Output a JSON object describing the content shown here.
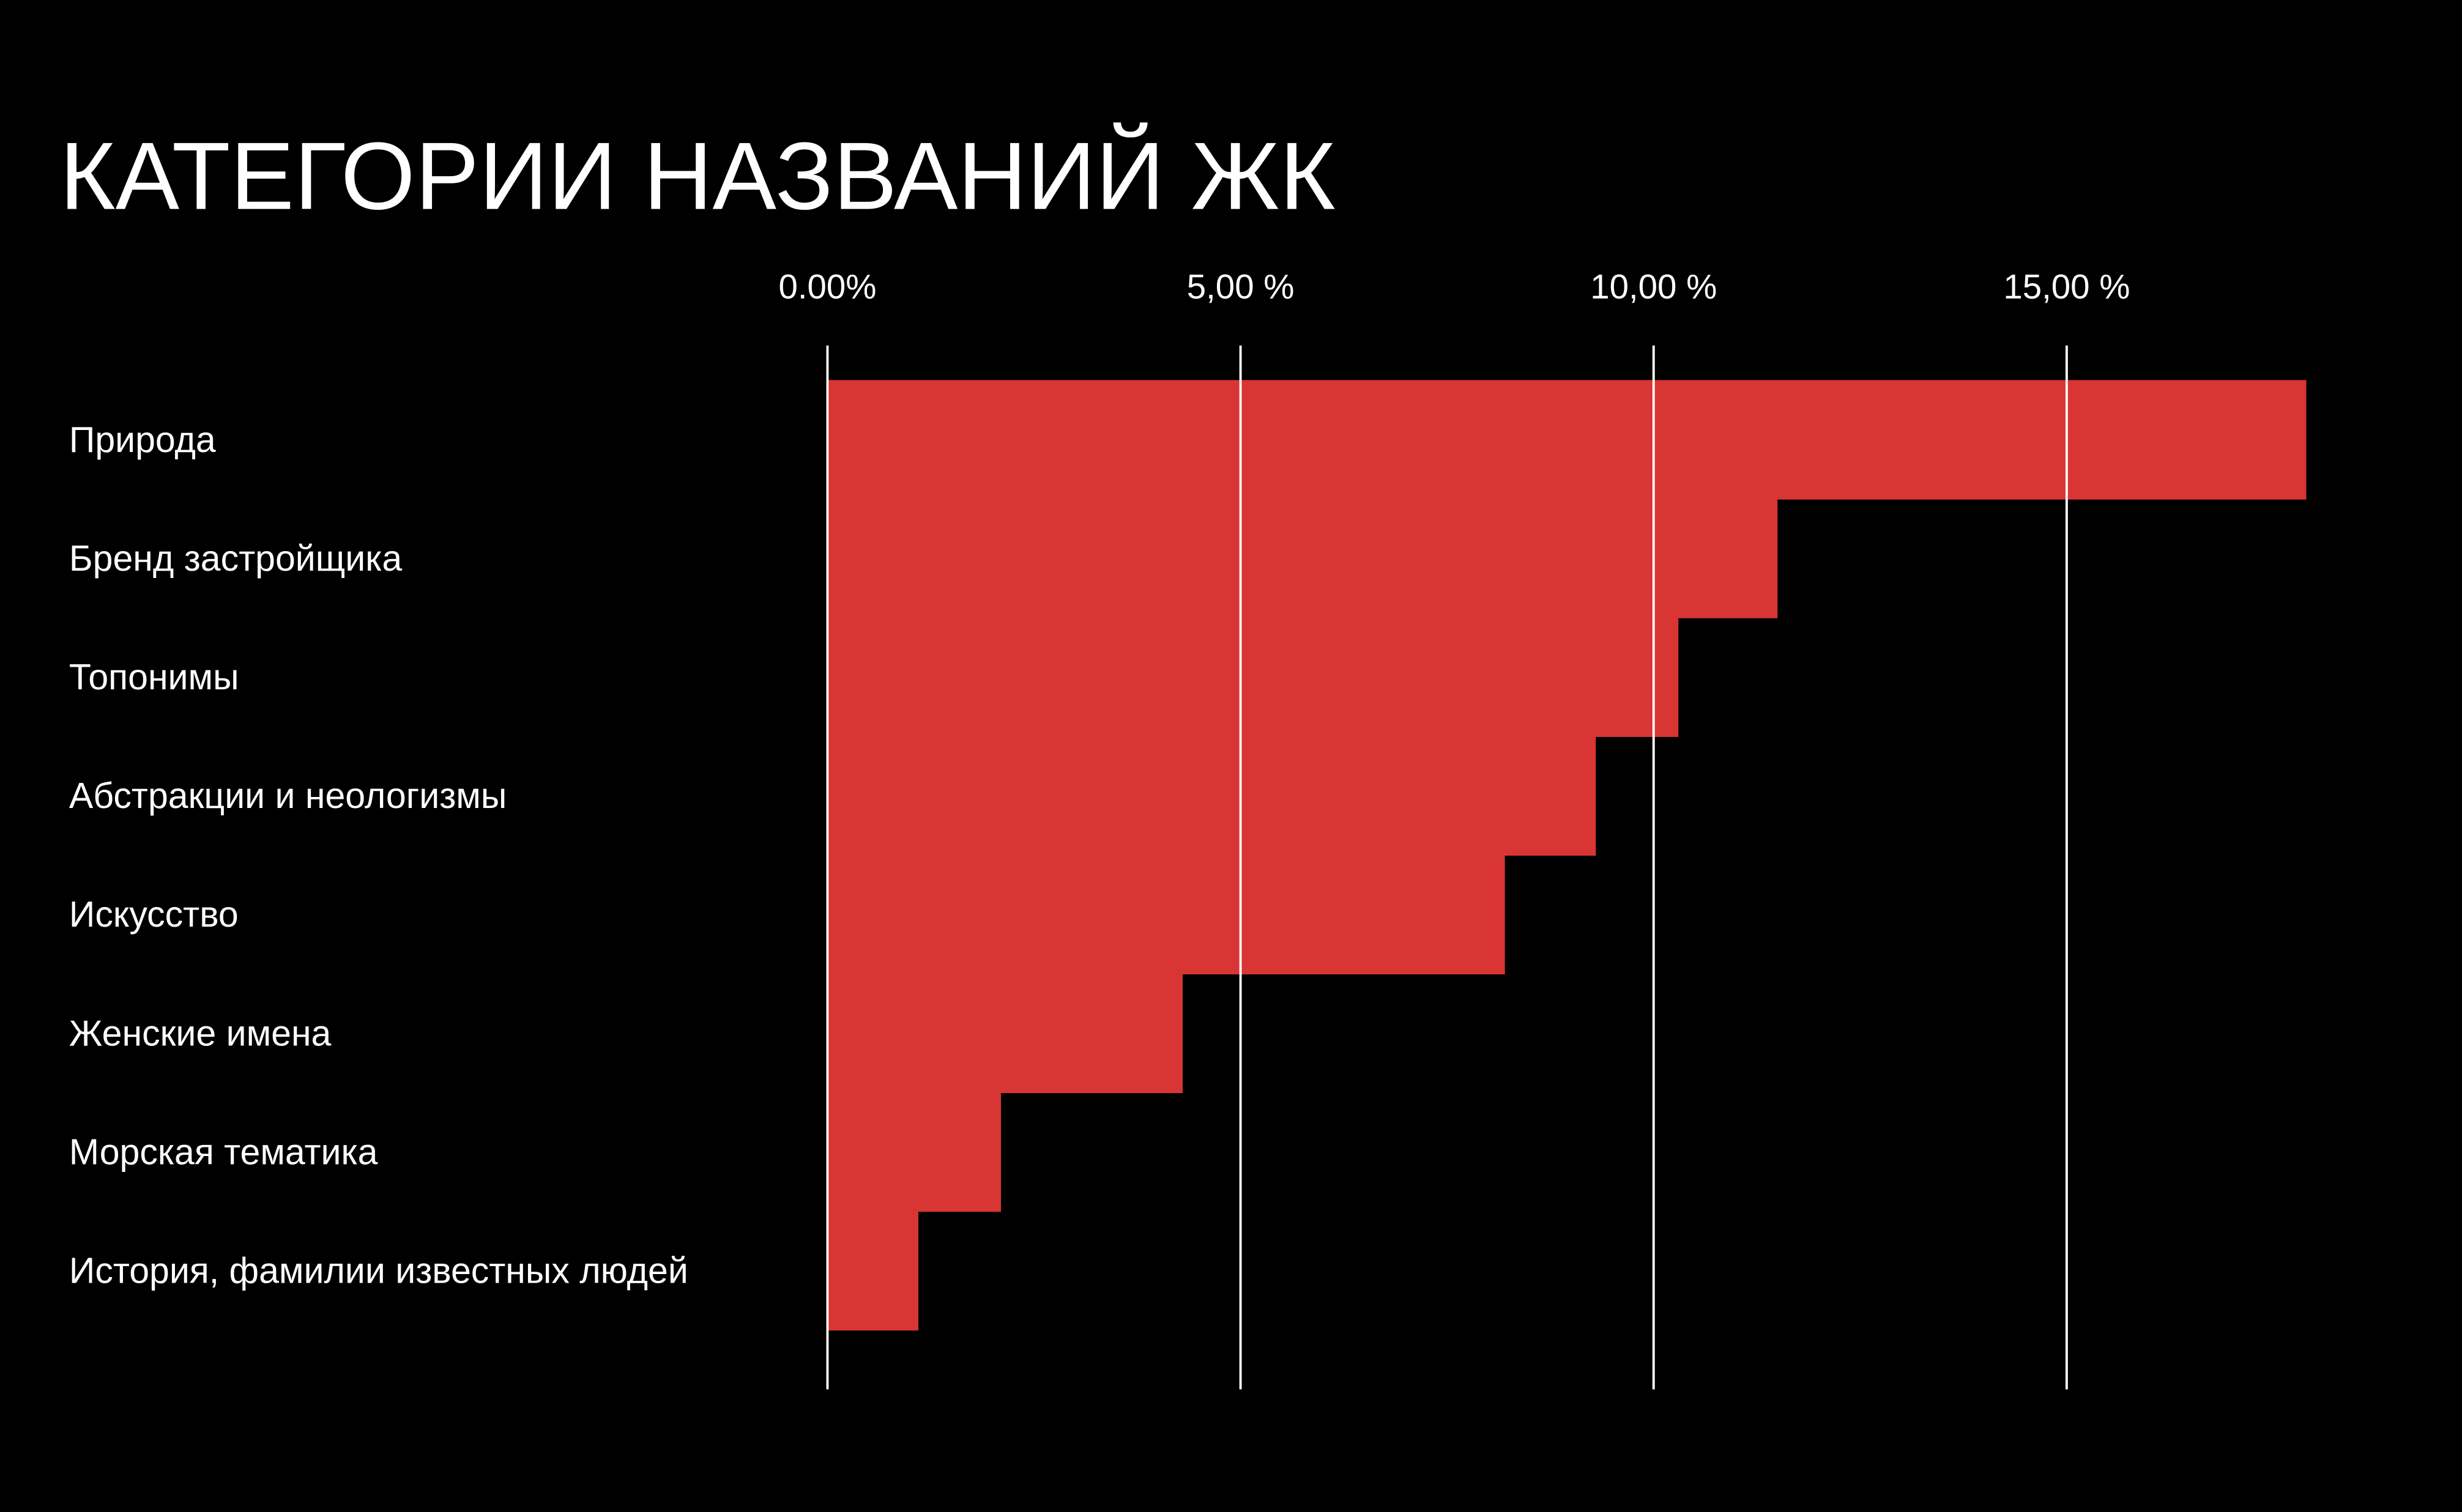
{
  "chart_data": {
    "type": "hbar",
    "title": "КАТЕГОРИИ НАЗВАНИЙ ЖК",
    "categories": [
      "Природа",
      "Бренд застройщика",
      "Топонимы",
      "Абстракции и неологизмы",
      "Искусство",
      "Женские имена",
      "Морская тематика",
      "История, фамилии известных людей"
    ],
    "values": [
      17.9,
      11.5,
      10.3,
      9.3,
      8.2,
      4.3,
      2.1,
      1.1
    ],
    "color": "#d93535",
    "xlim": [
      0,
      19.5
    ],
    "xticks": [
      {
        "value": 0,
        "label": "0.00%"
      },
      {
        "value": 5,
        "label": "5,00 %"
      },
      {
        "value": 10,
        "label": "10,00 %"
      },
      {
        "value": 15,
        "label": "15,00 %"
      }
    ],
    "grid": true
  }
}
